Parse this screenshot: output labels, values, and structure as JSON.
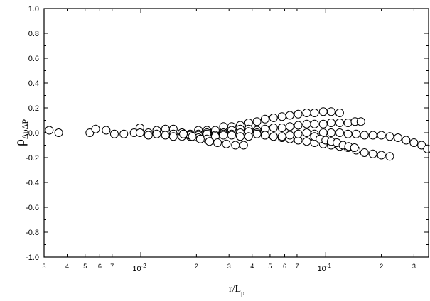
{
  "chart_data": {
    "type": "scatter",
    "xscale": "log",
    "xlim": [
      0.003,
      0.36
    ],
    "ylim": [
      -1.0,
      1.0
    ],
    "grid": false,
    "xlabel": {
      "main": "r/L",
      "sub": "p"
    },
    "ylabel": {
      "main": "ρ",
      "sub": "ΔυΔP"
    },
    "y_ticks": [
      "1.0",
      "0.8",
      "0.6",
      "0.4",
      "0.2",
      "0.0",
      "-0.2",
      "-0.4",
      "-0.6",
      "-0.8",
      "-1.0"
    ],
    "x_major_ticks": [
      {
        "value": 0.01,
        "base": "10",
        "exp": "-2"
      },
      {
        "value": 0.1,
        "base": "10",
        "exp": "-1"
      }
    ],
    "x_minor_ticks": [
      {
        "value": 0.003,
        "label": "3"
      },
      {
        "value": 0.004,
        "label": "4"
      },
      {
        "value": 0.005,
        "label": "5"
      },
      {
        "value": 0.006,
        "label": "6"
      },
      {
        "value": 0.007,
        "label": "7"
      },
      {
        "value": 0.02,
        "label": "2"
      },
      {
        "value": 0.03,
        "label": "3"
      },
      {
        "value": 0.04,
        "label": "4"
      },
      {
        "value": 0.05,
        "label": "5"
      },
      {
        "value": 0.06,
        "label": "6"
      },
      {
        "value": 0.07,
        "label": "7"
      },
      {
        "value": 0.2,
        "label": "2"
      },
      {
        "value": 0.3,
        "label": "3"
      }
    ],
    "series": [
      {
        "x": [
          0.0032,
          0.0036,
          0.0053,
          0.0057,
          0.0065,
          0.0072,
          0.0081,
          0.0092
        ],
        "y": [
          0.02,
          0.0,
          0.0,
          0.03,
          0.02,
          -0.01,
          -0.01,
          0.0
        ]
      },
      {
        "x": [
          0.0099,
          0.011,
          0.0122,
          0.0136,
          0.015,
          0.0167,
          0.0185,
          0.0205,
          0.0228,
          0.0253,
          0.028,
          0.031,
          0.0345,
          0.0383,
          0.0425,
          0.047,
          0.0522,
          0.058,
          0.064,
          0.071,
          0.079,
          0.087,
          0.097,
          0.107,
          0.119
        ],
        "y": [
          0.04,
          0.0,
          0.02,
          0.03,
          0.03,
          0.0,
          -0.01,
          0.02,
          0.02,
          0.0,
          0.05,
          0.05,
          0.06,
          0.08,
          0.09,
          0.11,
          0.12,
          0.13,
          0.14,
          0.15,
          0.16,
          0.16,
          0.17,
          0.17,
          0.16
        ]
      },
      {
        "x": [
          0.015,
          0.0167,
          0.0185,
          0.0205,
          0.0228,
          0.0253,
          0.028,
          0.031,
          0.0345,
          0.0383,
          0.0425,
          0.047,
          0.0522,
          0.058,
          0.064,
          0.071,
          0.079,
          0.087,
          0.097,
          0.107,
          0.119,
          0.132,
          0.144,
          0.155
        ],
        "y": [
          -0.01,
          0.0,
          -0.02,
          -0.01,
          0.0,
          0.02,
          0.0,
          0.02,
          0.03,
          0.03,
          0.02,
          0.03,
          0.04,
          0.04,
          0.05,
          0.06,
          0.07,
          0.07,
          0.07,
          0.08,
          0.08,
          0.08,
          0.09,
          0.09
        ]
      },
      {
        "x": [
          0.0099,
          0.011,
          0.0122,
          0.0136,
          0.015,
          0.0167,
          0.0185,
          0.0205,
          0.0228,
          0.0253,
          0.028,
          0.031,
          0.0345,
          0.0383,
          0.0425,
          0.047,
          0.0522,
          0.058,
          0.064,
          0.071,
          0.079,
          0.087,
          0.097,
          0.107,
          0.119,
          0.132,
          0.146,
          0.162,
          0.18,
          0.2,
          0.222
        ],
        "y": [
          0.0,
          -0.02,
          -0.01,
          -0.02,
          -0.03,
          -0.03,
          -0.03,
          -0.02,
          -0.01,
          -0.02,
          -0.01,
          -0.01,
          0.0,
          0.01,
          0.0,
          -0.02,
          -0.03,
          -0.04,
          -0.05,
          -0.06,
          -0.07,
          -0.08,
          -0.09,
          -0.1,
          -0.11,
          -0.12,
          -0.14,
          -0.16,
          -0.17,
          -0.18,
          -0.19
        ]
      },
      {
        "x": [
          0.0185,
          0.0205,
          0.0228,
          0.0253,
          0.028,
          0.031,
          0.0345,
          0.0383,
          0.0425,
          0.047,
          0.0522,
          0.058,
          0.064,
          0.071,
          0.079,
          0.087,
          0.097,
          0.107,
          0.119,
          0.132,
          0.146,
          0.162,
          0.18,
          0.2,
          0.222,
          0.246,
          0.272,
          0.3,
          0.33,
          0.355
        ],
        "y": [
          -0.02,
          -0.04,
          -0.05,
          -0.03,
          -0.02,
          -0.02,
          -0.03,
          -0.03,
          -0.01,
          -0.02,
          -0.03,
          -0.03,
          -0.02,
          -0.01,
          0.0,
          -0.01,
          0.0,
          0.0,
          0.0,
          -0.01,
          -0.01,
          -0.02,
          -0.02,
          -0.02,
          -0.03,
          -0.04,
          -0.06,
          -0.08,
          -0.1,
          -0.13
        ]
      },
      {
        "x": [
          0.017,
          0.019,
          0.021,
          0.0235,
          0.026,
          0.029,
          0.0325,
          0.036
        ],
        "y": [
          -0.01,
          -0.03,
          -0.05,
          -0.07,
          -0.08,
          -0.09,
          -0.1,
          -0.1
        ]
      },
      {
        "x": [
          0.087,
          0.093,
          0.1,
          0.107,
          0.115,
          0.124,
          0.133,
          0.143
        ],
        "y": [
          -0.03,
          -0.05,
          -0.06,
          -0.07,
          -0.08,
          -0.1,
          -0.11,
          -0.12
        ]
      }
    ]
  }
}
